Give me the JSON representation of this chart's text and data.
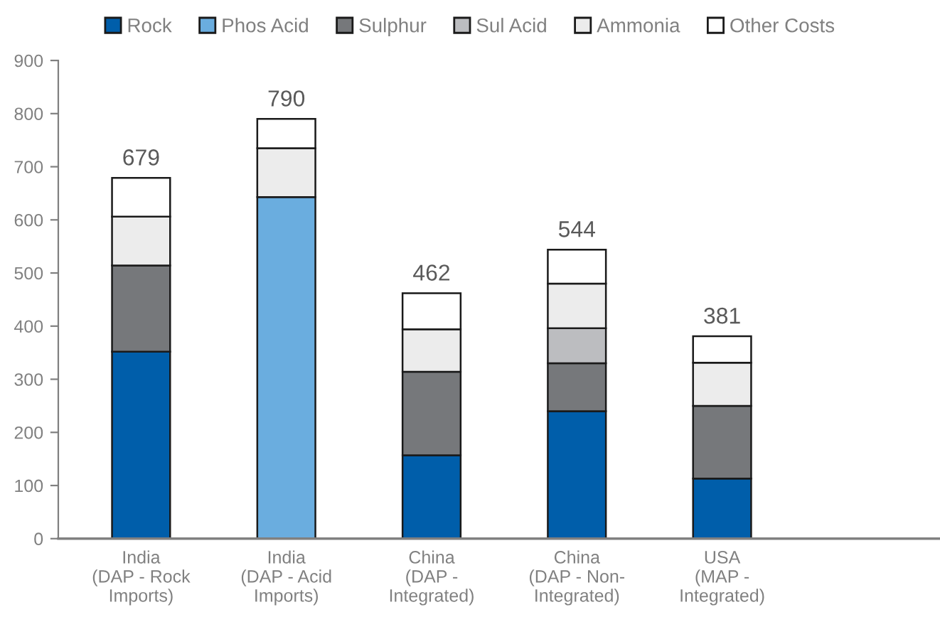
{
  "chart_data": {
    "type": "bar",
    "stacked": true,
    "categories": [
      "India\n(DAP - Rock\nImports)",
      "India\n(DAP - Acid\nImports)",
      "China\n(DAP -\nIntegrated)",
      "China\n(DAP - Non-\nIntegrated)",
      "USA\n(MAP -\nIntegrated)"
    ],
    "series": [
      {
        "name": "Rock",
        "color": "#005eaa",
        "values": [
          352,
          0,
          157,
          240,
          113
        ]
      },
      {
        "name": "Phos Acid",
        "color": "#6aaddf",
        "values": [
          0,
          643,
          0,
          0,
          0
        ]
      },
      {
        "name": "Sulphur",
        "color": "#76787b",
        "values": [
          162,
          0,
          157,
          90,
          137
        ]
      },
      {
        "name": "Sul Acid",
        "color": "#bcbdc0",
        "values": [
          0,
          0,
          0,
          66,
          0
        ]
      },
      {
        "name": "Ammonia",
        "color": "#ececec",
        "values": [
          92,
          92,
          80,
          84,
          81
        ]
      },
      {
        "name": "Other Costs",
        "color": "#ffffff",
        "values": [
          73,
          55,
          68,
          64,
          50
        ]
      }
    ],
    "totals": [
      "679",
      "790",
      "462",
      "544",
      "381"
    ],
    "ylim": [
      0,
      900
    ],
    "yticks": [
      0,
      100,
      200,
      300,
      400,
      500,
      600,
      700,
      800,
      900
    ],
    "grid": false,
    "legend": "top"
  }
}
